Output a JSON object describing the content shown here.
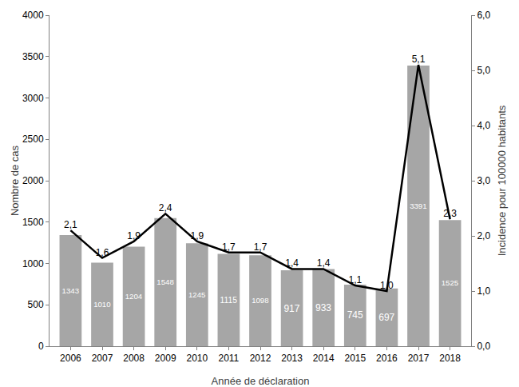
{
  "chart_data": {
    "type": "bar",
    "x_label": "Année de déclaration",
    "y_label": "Nombre de cas",
    "y2_label": "Incidence pour 100000 habitants",
    "categories": [
      "2006",
      "2007",
      "2008",
      "2009",
      "2010",
      "2011",
      "2012",
      "2013",
      "2014",
      "2015",
      "2016",
      "2017",
      "2018"
    ],
    "series": [
      {
        "type": "bar",
        "color": "#a6a6a6",
        "values": [
          1343,
          1010,
          1204,
          1548,
          1245,
          1115,
          1098,
          917,
          933,
          745,
          697,
          3391,
          1525
        ]
      },
      {
        "type": "line",
        "color": "#000000",
        "axis": "y2",
        "values": [
          2.1,
          1.6,
          1.9,
          2.4,
          1.9,
          1.7,
          1.7,
          1.4,
          1.4,
          1.1,
          1.0,
          5.1,
          2.3
        ],
        "value_labels": [
          "2,1",
          "1,6",
          "1,9",
          "2,4",
          "1,9",
          "1,7",
          "1,7",
          "1,4",
          "1,4",
          "1,1",
          "1,0",
          "5,1",
          "2,3"
        ]
      }
    ],
    "ylim": [
      0,
      4000
    ],
    "yticks": [
      0,
      500,
      1000,
      1500,
      2000,
      2500,
      3000,
      3500,
      4000
    ],
    "y2lim": [
      0,
      6
    ],
    "y2ticks": [
      {
        "value": 0,
        "label": "0,0"
      },
      {
        "value": 1,
        "label": "1,0"
      },
      {
        "value": 2,
        "label": "2,0"
      },
      {
        "value": 3,
        "label": "3,0"
      },
      {
        "value": 4,
        "label": "4,0"
      },
      {
        "value": 5,
        "label": "5,0"
      },
      {
        "value": 6,
        "label": "6,0"
      }
    ],
    "grid": false,
    "data_labels": true
  }
}
